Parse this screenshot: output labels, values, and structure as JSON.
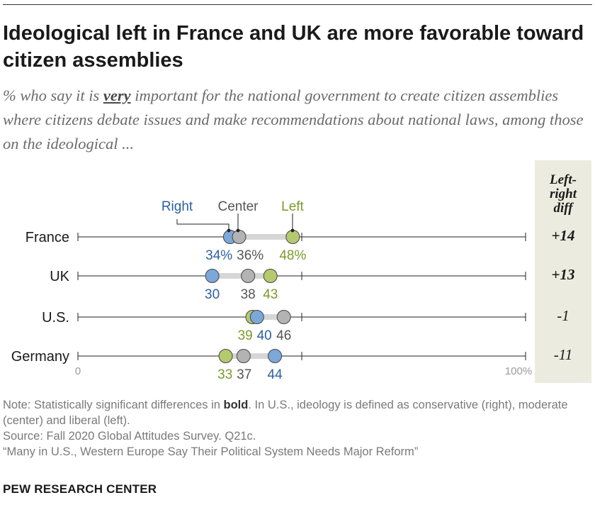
{
  "title": "Ideological left in France and UK are more favorable toward citizen assemblies",
  "subtitle": {
    "before": "% who say it is ",
    "emphasis": "very",
    "after": " important for the national government to create citizen assemblies where citizens debate issues and make recommendations about national laws, among those on the ideological ..."
  },
  "legend": {
    "right": "Right",
    "center": "Center",
    "left": "Left"
  },
  "diff_header": "Left-\nright\ndiff",
  "notes": {
    "note_before": "Note: Statistically significant differences in ",
    "note_bold": "bold",
    "note_after": ". In U.S., ideology is defined as conservative (right), moderate (center) and liberal (left).",
    "source": "Source: Fall 2020 Global Attitudes Survey. Q21c.",
    "report": "“Many in U.S., Western Europe Say Their Political System Needs Major Reform”"
  },
  "brand": "PEW RESEARCH CENTER",
  "colors": {
    "right": "#7ba7d9",
    "center": "#b3b3b3",
    "left": "#b5c96e",
    "right_text": "#2e5f9e",
    "center_text": "#555555",
    "left_text": "#7a9a2a",
    "connector": "#d6d6d6"
  },
  "chart_data": {
    "type": "dot",
    "title": "Ideological left in France and UK are more favorable toward citizen assemblies",
    "xlim": [
      0,
      100
    ],
    "x_tick_labels": [
      "0",
      "100%"
    ],
    "series_names": [
      "Right",
      "Center",
      "Left"
    ],
    "rows": [
      {
        "country": "France",
        "right": 34,
        "center": 36,
        "left": 48,
        "labels": [
          "34%",
          "36%",
          "48%"
        ],
        "diff": "+14",
        "significant": true
      },
      {
        "country": "UK",
        "right": 30,
        "center": 38,
        "left": 43,
        "labels": [
          "30",
          "38",
          "43"
        ],
        "diff": "+13",
        "significant": true
      },
      {
        "country": "U.S.",
        "right": 40,
        "center": 46,
        "left": 39,
        "labels": [
          "40",
          "46",
          "39"
        ],
        "diff": "-1",
        "significant": false
      },
      {
        "country": "Germany",
        "right": 44,
        "center": 37,
        "left": 33,
        "labels": [
          "44",
          "37",
          "33"
        ],
        "diff": "-11",
        "significant": false
      }
    ]
  }
}
